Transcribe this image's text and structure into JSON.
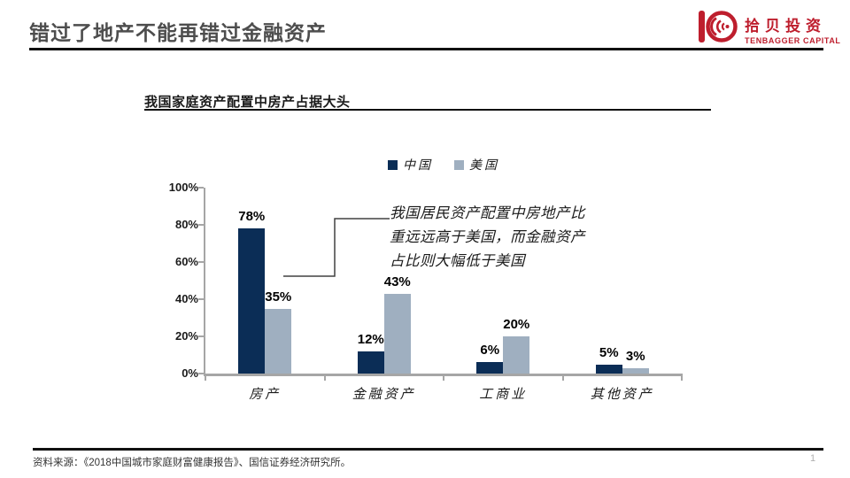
{
  "slide": {
    "title": "错过了地产不能再错过金融资产",
    "page_number": "1",
    "source_note": "资料来源：《2018中国城市家庭财富健康报告》、国信证券经济研究所。"
  },
  "logo": {
    "name_cn": "拾贝投资",
    "name_en": "TENBAGGER CAPITAL",
    "brand_color": "#BE1E2D"
  },
  "chart_data": {
    "type": "bar",
    "title": "我国家庭资产配置中房产占据大头",
    "categories": [
      "房产",
      "金融资产",
      "工商业",
      "其他资产"
    ],
    "series": [
      {
        "name": "中国",
        "color": "#0B2D56",
        "values": [
          78,
          12,
          6,
          5
        ]
      },
      {
        "name": "美国",
        "color": "#9FAFC0",
        "values": [
          35,
          43,
          20,
          3
        ]
      }
    ],
    "value_labels": [
      [
        "78%",
        "12%",
        "6%",
        "5%"
      ],
      [
        "35%",
        "43%",
        "20%",
        "3%"
      ]
    ],
    "ylim": [
      0,
      100
    ],
    "yticks": [
      "0%",
      "20%",
      "40%",
      "60%",
      "80%",
      "100%"
    ],
    "grid": false,
    "legend_position": "top-center",
    "annotation_lines": [
      "我国居民资产配置中房地产比",
      "重远远高于美国，而金融资产",
      "占比则大幅低于美国"
    ]
  }
}
